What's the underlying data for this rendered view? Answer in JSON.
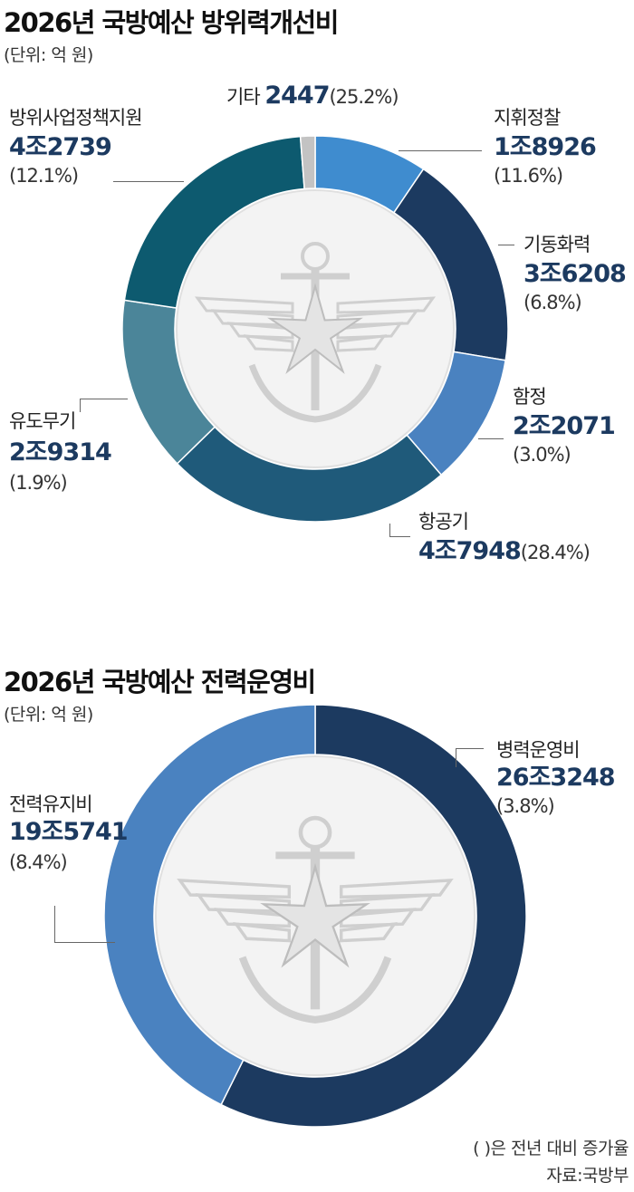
{
  "chart_data": [
    {
      "type": "pie",
      "title": "2026년 국방예산 방위력개선비",
      "unit": "(단위: 억 원)",
      "categories": [
        "지휘정찰",
        "기동화력",
        "함정",
        "항공기",
        "유도무기",
        "방위사업정책지원",
        "기타"
      ],
      "values": [
        18926,
        36208,
        22071,
        47948,
        29314,
        42739,
        2447
      ],
      "value_labels": [
        "1조8926",
        "3조6208",
        "2조2071",
        "4조7948",
        "2조9314",
        "4조2739",
        "2447"
      ],
      "change_labels": [
        "(11.6%)",
        "(6.8%)",
        "(3.0%)",
        "(28.4%)",
        "(1.9%)",
        "(12.1%)",
        "(25.2%)"
      ],
      "colors": [
        "#3f8ccf",
        "#1c3a60",
        "#4a82c0",
        "#1f5a7a",
        "#4b8599",
        "#0d5a6f",
        "#c3c3c3"
      ]
    },
    {
      "type": "pie",
      "title": "2026년 국방예산 전력운영비",
      "unit": "(단위: 억 원)",
      "categories": [
        "병력운영비",
        "전력유지비"
      ],
      "values": [
        263248,
        195741
      ],
      "value_labels": [
        "26조3248",
        "19조5741"
      ],
      "change_labels": [
        "(3.8%)",
        "(8.4%)"
      ],
      "colors": [
        "#1c3a60",
        "#4a82c0"
      ]
    }
  ],
  "footnote": "(  )은 전년 대비 증가율",
  "source": "자료:국방부",
  "emblem_icon": "armed-forces-emblem-anchor-star-wings"
}
